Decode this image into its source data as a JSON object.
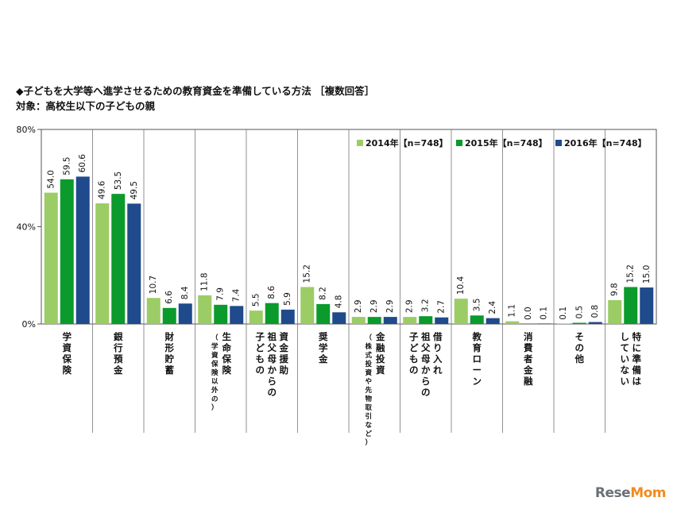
{
  "chart_data": {
    "type": "bar",
    "title": "◆子どもを大学等へ進学させるための教育資金を準備している方法 ［複数回答］",
    "subtitle": "対象：高校生以下の子どもの親",
    "ylim": [
      0,
      80
    ],
    "yticks": [
      "0%",
      "40%",
      "80%"
    ],
    "ytick_values": [
      0,
      40,
      80
    ],
    "grid": false,
    "legend_position": "top-right",
    "categories": [
      [
        "学資保険"
      ],
      [
        "銀行預金"
      ],
      [
        "財形貯蓄"
      ],
      [
        "生命保険",
        "（学資保険以外の）"
      ],
      [
        "資金援助",
        "祖父母からの",
        "子どもの"
      ],
      [
        "奨学金"
      ],
      [
        "金融投資",
        "（株式投資や先物取引など）"
      ],
      [
        "借り入れ",
        "祖父母からの",
        "子どもの"
      ],
      [
        "教育ローン"
      ],
      [
        "消費者金融"
      ],
      [
        "その他"
      ],
      [
        "特に準備は",
        "していない"
      ]
    ],
    "series": [
      {
        "name": "2014年【n=748】",
        "color": "#9ccc65",
        "values": [
          54.0,
          49.6,
          10.7,
          11.8,
          5.5,
          15.2,
          2.9,
          2.9,
          10.4,
          1.1,
          0.1,
          9.8
        ]
      },
      {
        "name": "2015年【n=748】",
        "color": "#0b9a2c",
        "values": [
          59.5,
          53.5,
          6.6,
          7.9,
          8.6,
          8.2,
          2.9,
          3.2,
          3.5,
          0.0,
          0.5,
          15.2
        ]
      },
      {
        "name": "2016年【n=748】",
        "color": "#1f4a8c",
        "values": [
          60.6,
          49.5,
          8.4,
          7.4,
          5.9,
          4.8,
          2.9,
          2.7,
          2.4,
          0.1,
          0.8,
          15.0
        ]
      }
    ]
  },
  "watermark": {
    "part1": "Rese",
    "part2": "Mom"
  }
}
